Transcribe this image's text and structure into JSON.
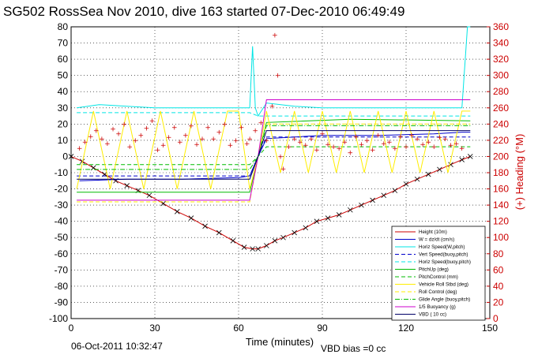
{
  "title": "SG502 RossSea Nov 2010, dive 163 started 07-Dec-2010 06:49:49",
  "footer": {
    "timestamp": "06-Oct-2011 10:32:47",
    "vbd_bias": "VBD bias =0 cc"
  },
  "chart_data": {
    "type": "line",
    "xlabel": "Time (minutes)",
    "ylabel_right": "(+) Heading (°M)",
    "xlim": [
      0,
      150
    ],
    "ylim": [
      -100,
      80
    ],
    "ylim_right": [
      0,
      360
    ],
    "grid": true,
    "x_ticks": [
      "0",
      "30",
      "60",
      "90",
      "120",
      "150"
    ],
    "y_ticks": [
      "80",
      "70",
      "60",
      "50",
      "40",
      "30",
      "20",
      "10",
      "0",
      "-10",
      "-20",
      "-30",
      "-40",
      "-50",
      "-60",
      "-70",
      "-80",
      "-90",
      "-100"
    ],
    "y_ticks_right": [
      "360",
      "340",
      "320",
      "300",
      "280",
      "260",
      "240",
      "220",
      "200",
      "180",
      "160",
      "140",
      "120",
      "100",
      "80",
      "60",
      "40",
      "20",
      "0"
    ],
    "legend_position": "bottom-right",
    "legend": [
      {
        "name": "Height (10m)",
        "color": "#cc0000",
        "style": "solid"
      },
      {
        "name": "W = dz/dt (cm/s)",
        "color": "#0000cc",
        "style": "solid"
      },
      {
        "name": "Horiz Speed(W,pitch)",
        "color": "#00e5e5",
        "style": "solid"
      },
      {
        "name": "Vert Speed(buoy,pitch)",
        "color": "#0000cc",
        "style": "dashed"
      },
      {
        "name": "Horiz Speed(buoy,pitch)",
        "color": "#00e5e5",
        "style": "dashed"
      },
      {
        "name": "PitchUp (deg)",
        "color": "#00bb00",
        "style": "solid"
      },
      {
        "name": "PitchControl (mm)",
        "color": "#00bb00",
        "style": "dashed"
      },
      {
        "name": "Vehicle Roll Stbd (deg)",
        "color": "#ffee00",
        "style": "solid"
      },
      {
        "name": "Roll Control (deg)",
        "color": "#ffee00",
        "style": "dashed"
      },
      {
        "name": "Glide Angle (buoy,pitch)",
        "color": "#00bb00",
        "style": "dashdot"
      },
      {
        "name": "1/5 Buoyancy (g)",
        "color": "#cc00cc",
        "style": "solid"
      },
      {
        "name": "VBD ( 10 cc)",
        "color": "#000066",
        "style": "solid"
      }
    ],
    "series": [
      {
        "name": "Height (10m)",
        "color": "#cc0000",
        "x": [
          0,
          4,
          8,
          12,
          16,
          20,
          24,
          28,
          33,
          38,
          43,
          48,
          53,
          58,
          62,
          65,
          67,
          70,
          73,
          76,
          80,
          84,
          88,
          92,
          96,
          100,
          104,
          108,
          112,
          116,
          120,
          124,
          128,
          132,
          136,
          140,
          143
        ],
        "y": [
          0,
          -3,
          -7,
          -11,
          -15,
          -18,
          -21,
          -24,
          -29,
          -34,
          -38,
          -43,
          -47,
          -52,
          -56,
          -57,
          -57,
          -55,
          -52,
          -50,
          -47,
          -44,
          -40,
          -38,
          -36,
          -33,
          -30,
          -27,
          -24,
          -21,
          -17,
          -14,
          -11,
          -8,
          -5,
          -2,
          0
        ]
      },
      {
        "name": "W = dz/dt (cm/s)",
        "color": "#0000cc",
        "x": [
          3,
          20,
          40,
          60,
          64,
          67,
          70,
          90,
          110,
          130,
          140,
          143
        ],
        "y": [
          -15,
          -14,
          -14,
          -13,
          -12,
          0,
          11,
          13,
          13,
          14,
          15,
          15
        ]
      },
      {
        "name": "Horiz Speed(W,pitch)",
        "color": "#00e5e5",
        "x": [
          2,
          10,
          20,
          30,
          40,
          50,
          60,
          64,
          65,
          66,
          67,
          70,
          80,
          90,
          100,
          110,
          120,
          130,
          140,
          142,
          143
        ],
        "y": [
          30,
          32,
          31,
          30,
          30,
          30,
          30,
          30,
          68,
          30,
          25,
          33,
          31,
          30,
          30,
          30,
          30,
          30,
          30,
          80,
          80
        ]
      },
      {
        "name": "Vert Speed(buoy,pitch)",
        "color": "#0000cc",
        "x": [
          2,
          30,
          60,
          64,
          67,
          70,
          100,
          143
        ],
        "y": [
          -12,
          -12,
          -12,
          -12,
          0,
          12,
          12,
          12
        ]
      },
      {
        "name": "Horiz Speed(buoy,pitch)",
        "color": "#00e5e5",
        "x": [
          2,
          30,
          60,
          64,
          67,
          70,
          100,
          143
        ],
        "y": [
          27,
          27,
          27,
          27,
          25,
          25,
          25,
          25
        ]
      },
      {
        "name": "PitchUp (deg)",
        "color": "#00bb00",
        "x": [
          2,
          30,
          60,
          64,
          67,
          70,
          100,
          143
        ],
        "y": [
          -22,
          -22,
          -22,
          -22,
          0,
          21,
          23,
          22
        ]
      },
      {
        "name": "PitchControl (mm)",
        "color": "#00bb00",
        "x": [
          2,
          30,
          60,
          64,
          67,
          70,
          100,
          143
        ],
        "y": [
          -5,
          -5,
          -5,
          -5,
          0,
          6,
          6,
          6
        ]
      },
      {
        "name": "Vehicle Roll Stbd (deg)",
        "color": "#ffee00",
        "x": [
          2,
          8,
          14,
          20,
          26,
          32,
          38,
          44,
          50,
          56,
          60,
          64,
          67,
          70,
          75,
          80,
          85,
          90,
          95,
          100,
          105,
          110,
          115,
          120,
          125,
          130,
          135,
          140,
          143
        ],
        "y": [
          -20,
          28,
          -20,
          28,
          -20,
          28,
          -20,
          28,
          -20,
          28,
          28,
          -20,
          0,
          28,
          -10,
          28,
          -10,
          28,
          -10,
          28,
          -10,
          28,
          -10,
          28,
          -10,
          28,
          -10,
          28,
          28
        ]
      },
      {
        "name": "Roll Control (deg)",
        "color": "#ffee00",
        "x": [
          2,
          30,
          60,
          64,
          67,
          70,
          100,
          143
        ],
        "y": [
          -28,
          -28,
          -28,
          -28,
          0,
          20,
          20,
          20
        ]
      },
      {
        "name": "Glide Angle (buoy,pitch)",
        "color": "#00bb00",
        "x": [
          2,
          30,
          60,
          64,
          67,
          70,
          100,
          143
        ],
        "y": [
          -8,
          -8,
          -8,
          -8,
          0,
          19,
          19,
          19
        ]
      },
      {
        "name": "1/5 Buoyancy (g)",
        "color": "#cc00cc",
        "x": [
          2,
          30,
          60,
          64,
          67,
          70,
          100,
          143
        ],
        "y": [
          -27,
          -27,
          -27,
          -27,
          0,
          35,
          35,
          35
        ]
      },
      {
        "name": "VBD ( 10 cc)",
        "color": "#000066",
        "x": [
          2,
          30,
          60,
          64,
          67,
          70,
          100,
          143
        ],
        "y": [
          -14,
          -14,
          -14,
          -14,
          0,
          16,
          16,
          16
        ]
      },
      {
        "name": "Heading",
        "color": "#cc0000",
        "axis": "right",
        "style": "dots",
        "x": [
          3,
          5,
          7,
          9,
          11,
          13,
          15,
          17,
          19,
          21,
          23,
          25,
          27,
          29,
          31,
          33,
          35,
          37,
          39,
          41,
          43,
          45,
          47,
          49,
          51,
          53,
          55,
          57,
          59,
          61,
          63,
          64,
          66,
          68,
          70,
          72,
          73,
          74,
          75,
          76,
          78,
          80,
          82,
          84,
          86,
          88,
          90,
          92,
          94,
          96,
          98,
          100,
          102,
          104,
          106,
          108,
          110,
          112,
          114,
          116,
          118,
          120,
          122,
          124,
          126,
          128,
          130,
          132,
          134,
          136,
          138,
          140
        ],
        "y": [
          210,
          218,
          225,
          232,
          222,
          216,
          234,
          228,
          240,
          212,
          220,
          226,
          235,
          244,
          208,
          214,
          224,
          236,
          218,
          226,
          238,
          215,
          222,
          236,
          222,
          230,
          240,
          214,
          220,
          236,
          216,
          222,
          232,
          242,
          220,
          262,
          350,
          300,
          200,
          185,
          212,
          222,
          218,
          214,
          222,
          208,
          228,
          215,
          212,
          210,
          218,
          205,
          225,
          215,
          220,
          208,
          226,
          216,
          218,
          210,
          225,
          212,
          226,
          222,
          215,
          218,
          212,
          224,
          222,
          214,
          216,
          210
        ]
      }
    ]
  }
}
